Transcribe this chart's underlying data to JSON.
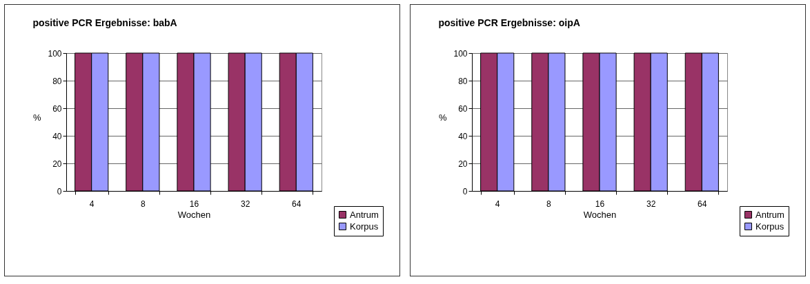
{
  "chart_data": [
    {
      "type": "bar",
      "title": "positive PCR Ergebnisse: babA",
      "xlabel": "Wochen",
      "ylabel": "%",
      "categories": [
        "4",
        "8",
        "16",
        "32",
        "64"
      ],
      "series": [
        {
          "name": "Antrum",
          "color": "#993366",
          "values": [
            100,
            100,
            100,
            100,
            100
          ]
        },
        {
          "name": "Korpus",
          "color": "#9999ff",
          "values": [
            100,
            100,
            100,
            100,
            100
          ]
        }
      ],
      "ylim": [
        0,
        100
      ],
      "yticks": [
        0,
        20,
        40,
        60,
        80,
        100
      ],
      "grid": "y",
      "legend": "bottom right"
    },
    {
      "type": "bar",
      "title": "positive PCR Ergebnisse: oipA",
      "xlabel": "Wochen",
      "ylabel": "%",
      "categories": [
        "4",
        "8",
        "16",
        "32",
        "64"
      ],
      "series": [
        {
          "name": "Antrum",
          "color": "#993366",
          "values": [
            100,
            100,
            100,
            100,
            100
          ]
        },
        {
          "name": "Korpus",
          "color": "#9999ff",
          "values": [
            100,
            100,
            100,
            100,
            100
          ]
        }
      ],
      "ylim": [
        0,
        100
      ],
      "yticks": [
        0,
        20,
        40,
        60,
        80,
        100
      ],
      "grid": "y",
      "legend": "bottom right"
    }
  ]
}
